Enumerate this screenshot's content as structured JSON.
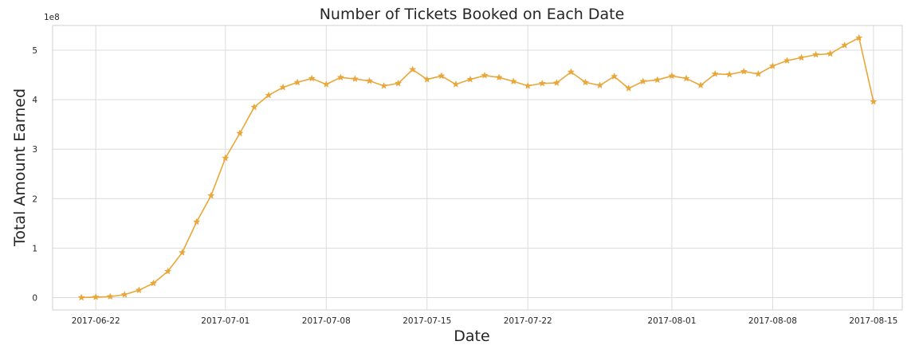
{
  "chart_data": {
    "type": "line",
    "title": "Number of Tickets Booked on Each Date",
    "xlabel": "Date",
    "ylabel": "Total Amount Earned",
    "y_offset_label": "1e8",
    "y_scale_note": "values in units of 1e8",
    "grid": true,
    "line_color": "#e9a73a",
    "marker": "star",
    "x_ticks": [
      "2017-06-22",
      "2017-07-01",
      "2017-07-08",
      "2017-07-15",
      "2017-07-22",
      "2017-08-01",
      "2017-08-08",
      "2017-08-15"
    ],
    "y_ticks": [
      "0",
      "1",
      "2",
      "3",
      "4",
      "5"
    ],
    "xlim": [
      "2017-06-19",
      "2017-08-17"
    ],
    "ylim": [
      -0.25,
      5.5
    ],
    "series": [
      {
        "x": [
          "2017-06-21",
          "2017-06-22",
          "2017-06-23",
          "2017-06-24",
          "2017-06-25",
          "2017-06-26",
          "2017-06-27",
          "2017-06-28",
          "2017-06-29",
          "2017-06-30",
          "2017-07-01",
          "2017-07-02",
          "2017-07-03",
          "2017-07-04",
          "2017-07-05",
          "2017-07-06",
          "2017-07-07",
          "2017-07-08",
          "2017-07-09",
          "2017-07-10",
          "2017-07-11",
          "2017-07-12",
          "2017-07-13",
          "2017-07-14",
          "2017-07-15",
          "2017-07-16",
          "2017-07-17",
          "2017-07-18",
          "2017-07-19",
          "2017-07-20",
          "2017-07-21",
          "2017-07-22",
          "2017-07-23",
          "2017-07-24",
          "2017-07-25",
          "2017-07-26",
          "2017-07-27",
          "2017-07-28",
          "2017-07-29",
          "2017-07-30",
          "2017-07-31",
          "2017-08-01",
          "2017-08-02",
          "2017-08-03",
          "2017-08-04",
          "2017-08-05",
          "2017-08-06",
          "2017-08-07",
          "2017-08-08",
          "2017-08-09",
          "2017-08-10",
          "2017-08-11",
          "2017-08-12",
          "2017-08-13",
          "2017-08-14",
          "2017-08-15"
        ],
        "values": [
          0.0,
          0.01,
          0.02,
          0.06,
          0.15,
          0.29,
          0.53,
          0.91,
          1.53,
          2.06,
          2.82,
          3.32,
          3.85,
          4.09,
          4.25,
          4.35,
          4.43,
          4.31,
          4.45,
          4.42,
          4.38,
          4.28,
          4.33,
          4.61,
          4.41,
          4.48,
          4.31,
          4.41,
          4.49,
          4.45,
          4.37,
          4.28,
          4.33,
          4.34,
          4.56,
          4.35,
          4.29,
          4.47,
          4.23,
          4.37,
          4.4,
          4.48,
          4.43,
          4.29,
          4.52,
          4.51,
          4.57,
          4.52,
          4.68,
          4.79,
          4.85,
          4.91,
          4.93,
          5.1,
          5.25,
          3.96
        ]
      }
    ]
  }
}
